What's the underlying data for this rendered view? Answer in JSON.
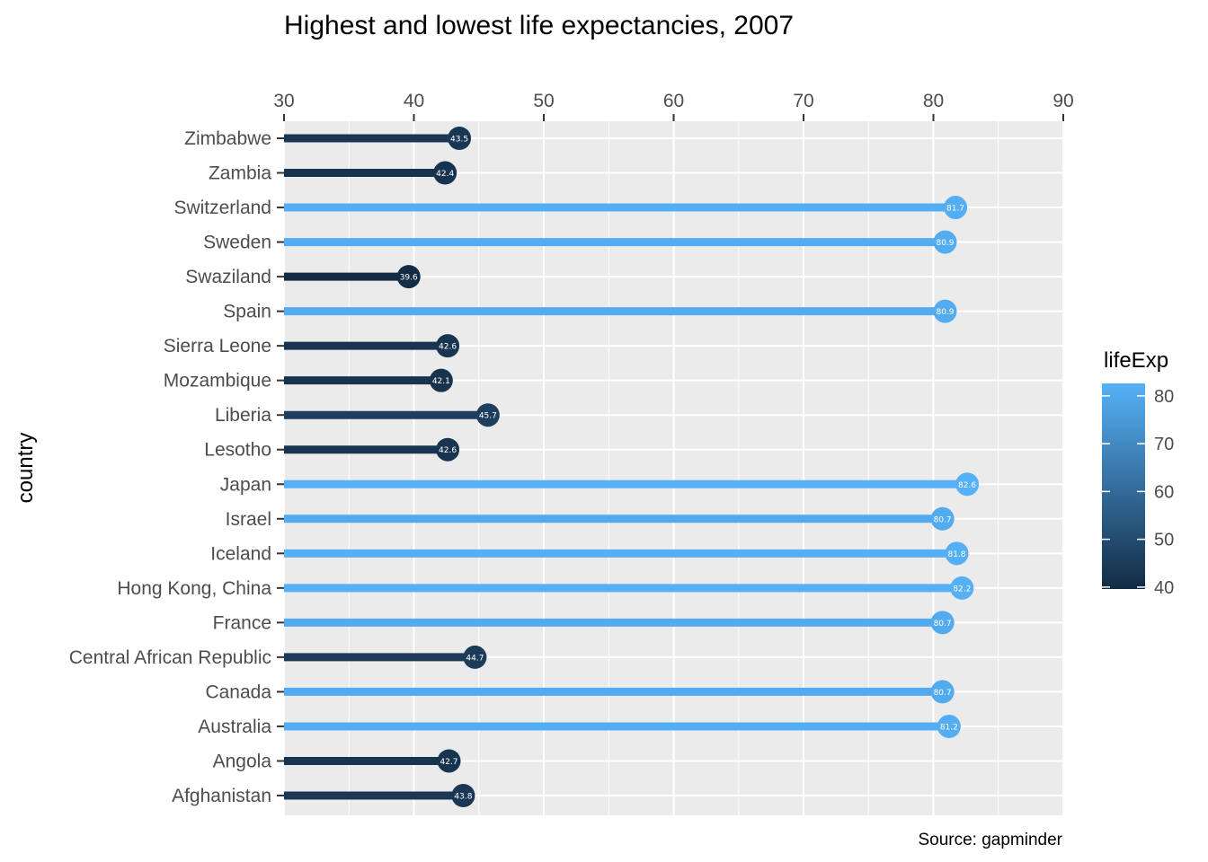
{
  "chart_data": {
    "type": "lollipop",
    "title": "Highest and lowest life expectancies, 2007",
    "xlabel": "",
    "ylabel": "country",
    "caption": "Source: gapminder",
    "xlim": [
      30,
      90
    ],
    "x_ticks": [
      30,
      40,
      50,
      60,
      70,
      80,
      90
    ],
    "x_axis_position": "top",
    "grid": true,
    "categories": [
      "Zimbabwe",
      "Zambia",
      "Switzerland",
      "Sweden",
      "Swaziland",
      "Spain",
      "Sierra Leone",
      "Mozambique",
      "Liberia",
      "Lesotho",
      "Japan",
      "Israel",
      "Iceland",
      "Hong Kong, China",
      "France",
      "Central African Republic",
      "Canada",
      "Australia",
      "Angola",
      "Afghanistan"
    ],
    "values": [
      43.5,
      42.4,
      81.7,
      80.9,
      39.6,
      80.9,
      42.6,
      42.1,
      45.7,
      42.6,
      82.6,
      80.7,
      81.8,
      82.2,
      80.7,
      44.7,
      80.7,
      81.2,
      42.7,
      43.8
    ],
    "value_labels": [
      "43.5",
      "42.4",
      "81.7",
      "80.9",
      "39.6",
      "80.9",
      "42.6",
      "42.1",
      "45.7",
      "42.6",
      "82.6",
      "80.7",
      "81.8",
      "82.2",
      "80.7",
      "44.7",
      "80.7",
      "81.2",
      "42.7",
      "43.8"
    ],
    "legend": {
      "title": "lifeExp",
      "placement": "right",
      "type": "colorbar",
      "range": [
        39.6,
        82.6
      ],
      "ticks": [
        40,
        50,
        60,
        70,
        80
      ],
      "tick_labels": [
        "40",
        "50",
        "60",
        "70",
        "80"
      ],
      "color_low": "#132B43",
      "color_high": "#56B1F7"
    },
    "colors": {
      "panel_background": "#EBEBEB",
      "grid": "#FFFFFF"
    }
  }
}
